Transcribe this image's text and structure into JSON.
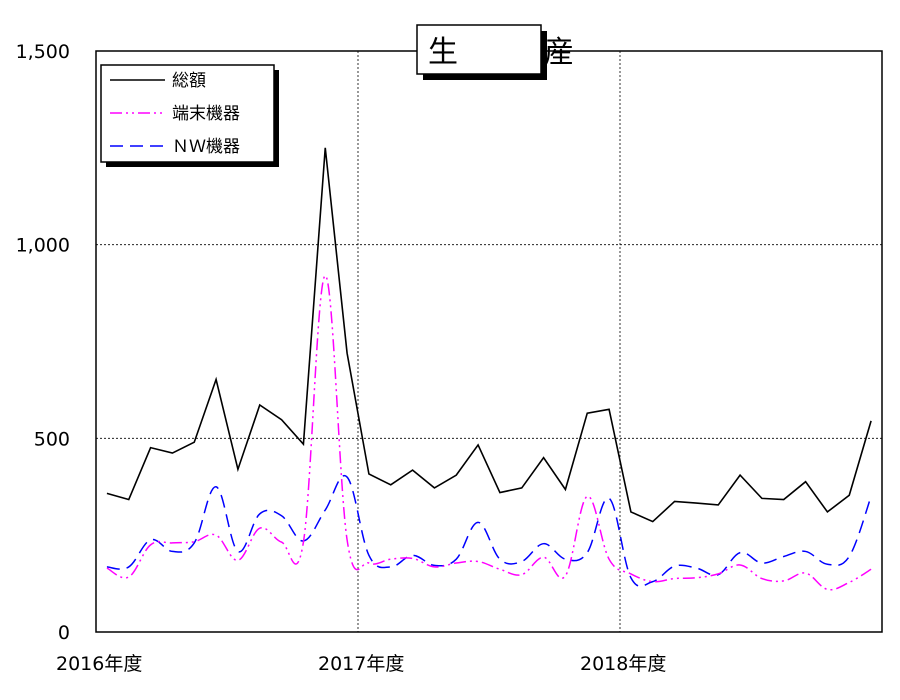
{
  "chart_data": {
    "type": "line",
    "title": "生　産",
    "xlabel": "",
    "ylabel": "",
    "ylim": [
      0,
      1500
    ],
    "y_ticks": [
      0,
      500,
      1000,
      1500
    ],
    "y_tick_labels": [
      "0",
      "500",
      "1,000",
      "1,500"
    ],
    "grid": true,
    "legend_position": "top-left",
    "x_tick_labels": [
      "2016年度",
      "2017年度",
      "2018年度"
    ],
    "x_tick_positions": [
      0,
      12,
      24
    ],
    "x": [
      0,
      1,
      2,
      3,
      4,
      5,
      6,
      7,
      8,
      9,
      10,
      11,
      12,
      13,
      14,
      15,
      16,
      17,
      18,
      19,
      20,
      21,
      22,
      23,
      24,
      25,
      26,
      27,
      28,
      29,
      30,
      31,
      32,
      33,
      34,
      35
    ],
    "series": [
      {
        "name": "総額",
        "color": "#000000",
        "style": "solid",
        "values": [
          358,
          342,
          476,
          462,
          490,
          652,
          420,
          586,
          548,
          485,
          1250,
          720,
          408,
          380,
          418,
          372,
          405,
          483,
          360,
          372,
          450,
          368,
          565,
          575,
          310,
          285,
          337,
          333,
          328,
          405,
          345,
          342,
          388,
          310,
          353,
          545
        ]
      },
      {
        "name": "端末機器",
        "color": "#ff00ff",
        "style": "dashdotdot",
        "values": [
          165,
          142,
          225,
          230,
          233,
          250,
          185,
          268,
          232,
          232,
          920,
          238,
          178,
          188,
          190,
          168,
          178,
          182,
          162,
          148,
          193,
          145,
          350,
          188,
          150,
          130,
          138,
          140,
          150,
          173,
          138,
          132,
          152,
          110,
          128,
          162
        ]
      },
      {
        "name": "ＮＷ機器",
        "color": "#0000ff",
        "style": "dashed",
        "values": [
          168,
          168,
          238,
          208,
          230,
          375,
          208,
          305,
          300,
          235,
          315,
          400,
          198,
          168,
          198,
          172,
          188,
          283,
          188,
          182,
          228,
          188,
          205,
          345,
          140,
          130,
          170,
          165,
          148,
          205,
          178,
          195,
          208,
          175,
          195,
          350
        ]
      }
    ]
  }
}
